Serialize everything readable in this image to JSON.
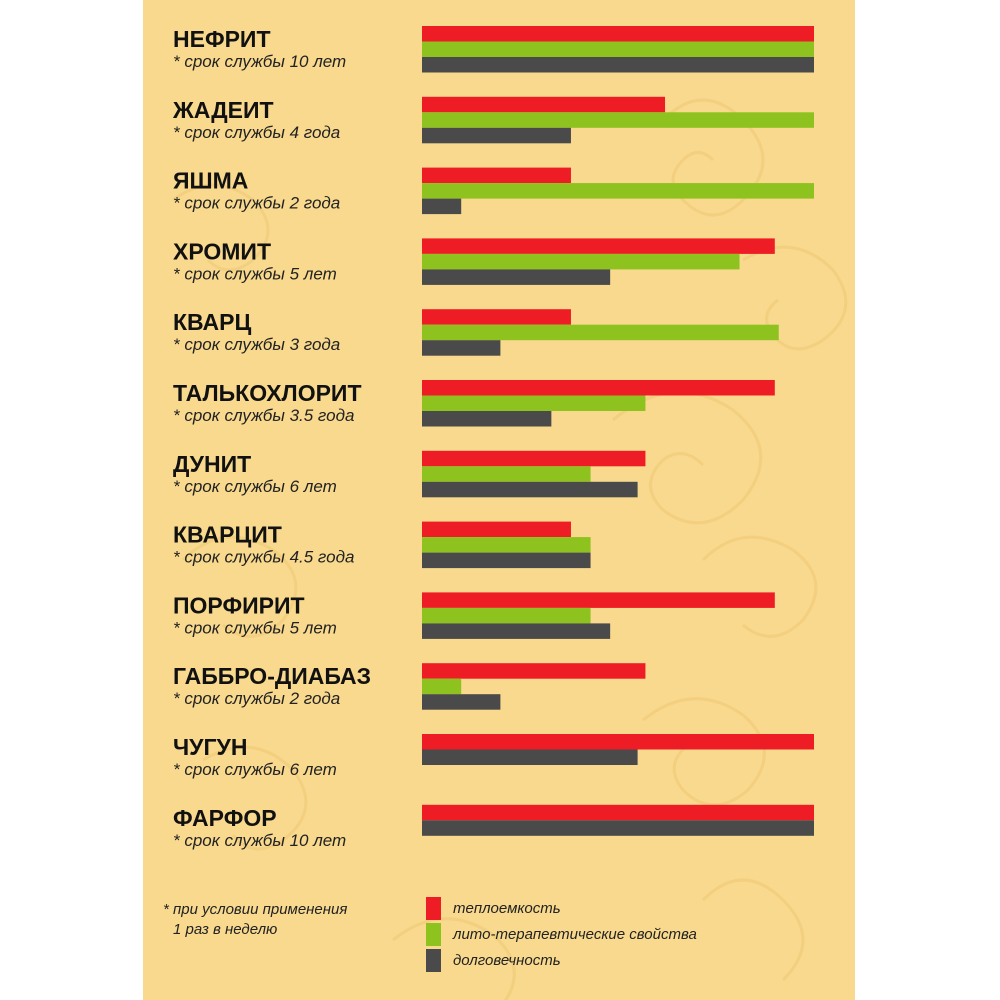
{
  "colors": {
    "heat_capacity": "#ee1c25",
    "therapeutic": "#8dc21f",
    "durability": "#4a4a4a",
    "background": "#f8d98e"
  },
  "chart_data": {
    "type": "bar",
    "orientation": "horizontal",
    "xlim": [
      0,
      100
    ],
    "grid": false,
    "legend_position": "bottom",
    "categories": [
      {
        "name": "НЕФРИТ",
        "note": "* срок службы 10 лет"
      },
      {
        "name": "ЖАДЕИТ",
        "note": "* срок службы 4 года"
      },
      {
        "name": "ЯШМА",
        "note": "* срок службы  2 года"
      },
      {
        "name": "ХРОМИТ",
        "note": "* срок службы  5 лет"
      },
      {
        "name": "КВАРЦ",
        "note": "* срок службы 3 года"
      },
      {
        "name": "ТАЛЬКОХЛОРИТ",
        "note": "* срок службы  3.5 года"
      },
      {
        "name": "ДУНИТ",
        "note": "* срок службы 6 лет"
      },
      {
        "name": "КВАРЦИТ",
        "note": "* срок службы 4.5 года"
      },
      {
        "name": "ПОРФИРИТ",
        "note": "* срок службы 5 лет"
      },
      {
        "name": "ГАББРО-ДИАБАЗ",
        "note": "* срок службы  2 года"
      },
      {
        "name": "ЧУГУН",
        "note": "* срок службы  6 лет"
      },
      {
        "name": "ФАРФОР",
        "note": "* срок службы 10 лет"
      }
    ],
    "series": [
      {
        "name": "теплоемкость",
        "color_key": "heat_capacity",
        "values": [
          100,
          62,
          38,
          90,
          38,
          90,
          57,
          38,
          90,
          57,
          100,
          100
        ]
      },
      {
        "name": "лито-терапевтические свойства",
        "color_key": "therapeutic",
        "values": [
          100,
          100,
          100,
          81,
          91,
          57,
          43,
          43,
          43,
          10,
          null,
          null
        ]
      },
      {
        "name": "долговечность",
        "color_key": "durability",
        "values": [
          100,
          38,
          10,
          48,
          20,
          33,
          55,
          43,
          48,
          20,
          55,
          100
        ]
      }
    ]
  },
  "footnote": {
    "line1": "*  при условии применения",
    "line2": "1 раз в неделю"
  }
}
